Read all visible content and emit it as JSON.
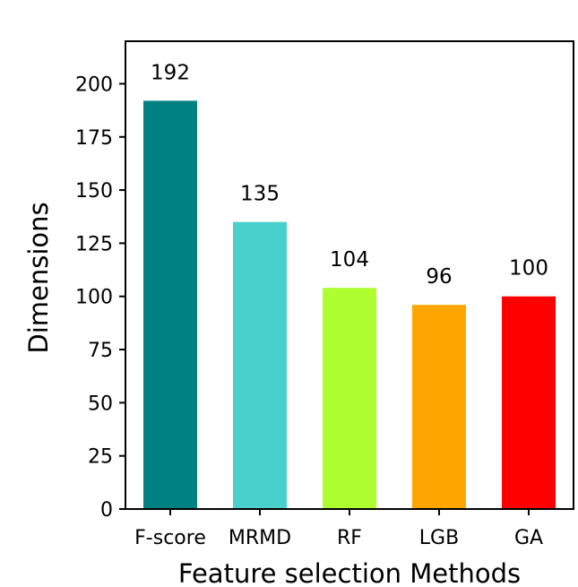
{
  "chart_data": {
    "type": "bar",
    "categories": [
      "F-score",
      "MRMD",
      "RF",
      "LGB",
      "GA"
    ],
    "values": [
      192,
      135,
      104,
      96,
      100
    ],
    "data_labels": [
      "192",
      "135",
      "104",
      "96",
      "100"
    ],
    "colors": [
      "#008080",
      "#48D1CC",
      "#ADFF2F",
      "#FFA500",
      "#FF0000"
    ],
    "xlabel": "Feature selection Methods",
    "ylabel": "Dimensions",
    "ylim": [
      0,
      220
    ],
    "yticks": [
      0,
      25,
      50,
      75,
      100,
      125,
      150,
      175,
      200
    ],
    "ytick_labels": [
      "0",
      "25",
      "50",
      "75",
      "100",
      "125",
      "150",
      "175",
      "200"
    ],
    "grid": false,
    "legend": "none"
  }
}
